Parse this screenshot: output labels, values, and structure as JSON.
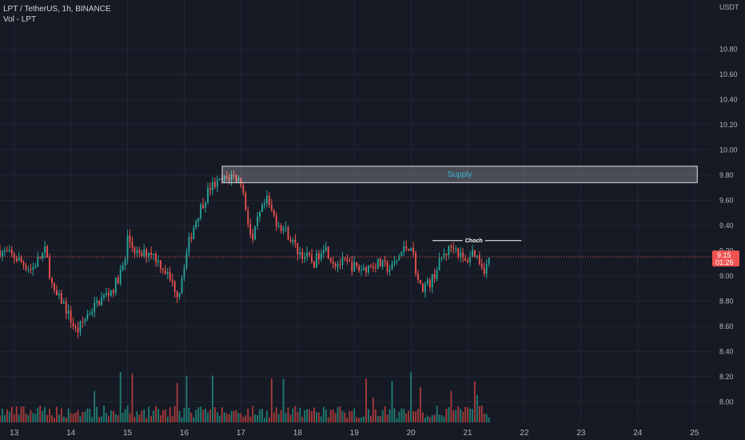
{
  "header": {
    "symbol": "LPT / TetherUS, 1h, BINANCE",
    "volume_label": "Vol - LPT"
  },
  "price_scale": {
    "currency": "USDT",
    "last_price": "9.15",
    "countdown": "01:26"
  },
  "colors": {
    "background": "#161a25",
    "up": "#26a69a",
    "down": "#ef5350",
    "up_volume": "#1f7d72",
    "down_volume": "#a83b3a",
    "grid": "#222633",
    "supply_fill": "#ffffff",
    "supply_text": "#3bb3d6",
    "price_line": "#ef5350"
  },
  "chart_data": {
    "type": "candlestick",
    "ylim": [
      7.9,
      11.05
    ],
    "y_ticks": [
      "8.00",
      "8.20",
      "8.40",
      "8.60",
      "8.80",
      "9.00",
      "9.20",
      "9.40",
      "9.60",
      "9.80",
      "10.00",
      "10.20",
      "10.40",
      "10.60",
      "10.80"
    ],
    "x_ticks": [
      "13",
      "14",
      "15",
      "16",
      "17",
      "18",
      "19",
      "20",
      "21",
      "22",
      "23",
      "24",
      "25"
    ],
    "x_tick_days": [
      13,
      14,
      15,
      16,
      17,
      18,
      19,
      20,
      21,
      22,
      23,
      24,
      25
    ],
    "xlim": [
      12.75,
      25.3
    ],
    "last_day": 21.4,
    "price_path": [
      [
        12.75,
        9.2
      ],
      [
        13.0,
        9.15
      ],
      [
        13.3,
        9.05
      ],
      [
        13.55,
        9.2
      ],
      [
        13.7,
        8.85
      ],
      [
        13.85,
        8.8
      ],
      [
        14.1,
        8.55
      ],
      [
        14.3,
        8.7
      ],
      [
        14.5,
        8.8
      ],
      [
        14.75,
        8.9
      ],
      [
        14.95,
        9.1
      ],
      [
        15.0,
        9.3
      ],
      [
        15.2,
        9.15
      ],
      [
        15.4,
        9.2
      ],
      [
        15.65,
        9.05
      ],
      [
        15.9,
        8.85
      ],
      [
        16.0,
        9.1
      ],
      [
        16.1,
        9.3
      ],
      [
        16.25,
        9.5
      ],
      [
        16.45,
        9.7
      ],
      [
        16.65,
        9.75
      ],
      [
        16.85,
        9.8
      ],
      [
        17.0,
        9.75
      ],
      [
        17.2,
        9.25
      ],
      [
        17.3,
        9.45
      ],
      [
        17.45,
        9.6
      ],
      [
        17.6,
        9.45
      ],
      [
        17.8,
        9.35
      ],
      [
        18.0,
        9.2
      ],
      [
        18.15,
        9.15
      ],
      [
        18.3,
        9.1
      ],
      [
        18.45,
        9.25
      ],
      [
        18.65,
        9.1
      ],
      [
        18.85,
        9.1
      ],
      [
        19.1,
        9.05
      ],
      [
        19.4,
        9.1
      ],
      [
        19.65,
        9.05
      ],
      [
        19.85,
        9.2
      ],
      [
        20.0,
        9.25
      ],
      [
        20.15,
        8.9
      ],
      [
        20.35,
        8.95
      ],
      [
        20.55,
        9.15
      ],
      [
        20.75,
        9.25
      ],
      [
        20.95,
        9.1
      ],
      [
        21.1,
        9.2
      ],
      [
        21.3,
        9.05
      ],
      [
        21.4,
        9.15
      ]
    ],
    "volume_max": 1.0,
    "supply_zone": {
      "label": "Supply",
      "price_low": 9.74,
      "price_high": 9.87,
      "day_start": 16.67,
      "day_end": 25.05
    },
    "choch": {
      "label": "Choch",
      "price": 9.28,
      "day_start": 20.38,
      "day_end": 21.95
    },
    "last_price": 9.15
  }
}
